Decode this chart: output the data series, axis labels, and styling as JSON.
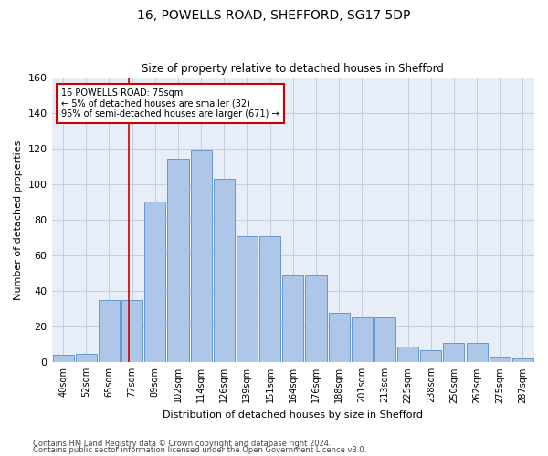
{
  "title": "16, POWELLS ROAD, SHEFFORD, SG17 5DP",
  "subtitle": "Size of property relative to detached houses in Shefford",
  "xlabel": "Distribution of detached houses by size in Shefford",
  "ylabel": "Number of detached properties",
  "bar_labels": [
    "40sqm",
    "52sqm",
    "65sqm",
    "77sqm",
    "89sqm",
    "102sqm",
    "114sqm",
    "126sqm",
    "139sqm",
    "151sqm",
    "164sqm",
    "176sqm",
    "188sqm",
    "201sqm",
    "213sqm",
    "225sqm",
    "238sqm",
    "250sqm",
    "262sqm",
    "275sqm",
    "287sqm"
  ],
  "bar_values": [
    4,
    5,
    35,
    35,
    90,
    114,
    119,
    103,
    71,
    71,
    49,
    49,
    28,
    25,
    25,
    9,
    7,
    11,
    11,
    3,
    2
  ],
  "bar_color": "#aec6e8",
  "bar_edge_color": "#6699cc",
  "vline_color": "#cc0000",
  "annotation_line1": "16 POWELLS ROAD: 75sqm",
  "annotation_line2": "← 5% of detached houses are smaller (32)",
  "annotation_line3": "95% of semi-detached houses are larger (671) →",
  "annotation_box_color": "white",
  "annotation_box_edge": "#cc0000",
  "ylim": [
    0,
    160
  ],
  "yticks": [
    0,
    20,
    40,
    60,
    80,
    100,
    120,
    140,
    160
  ],
  "footer1": "Contains HM Land Registry data © Crown copyright and database right 2024.",
  "footer2": "Contains public sector information licensed under the Open Government Licence v3.0.",
  "bg_color": "#e8eef8",
  "grid_color": "#c0c8d8"
}
